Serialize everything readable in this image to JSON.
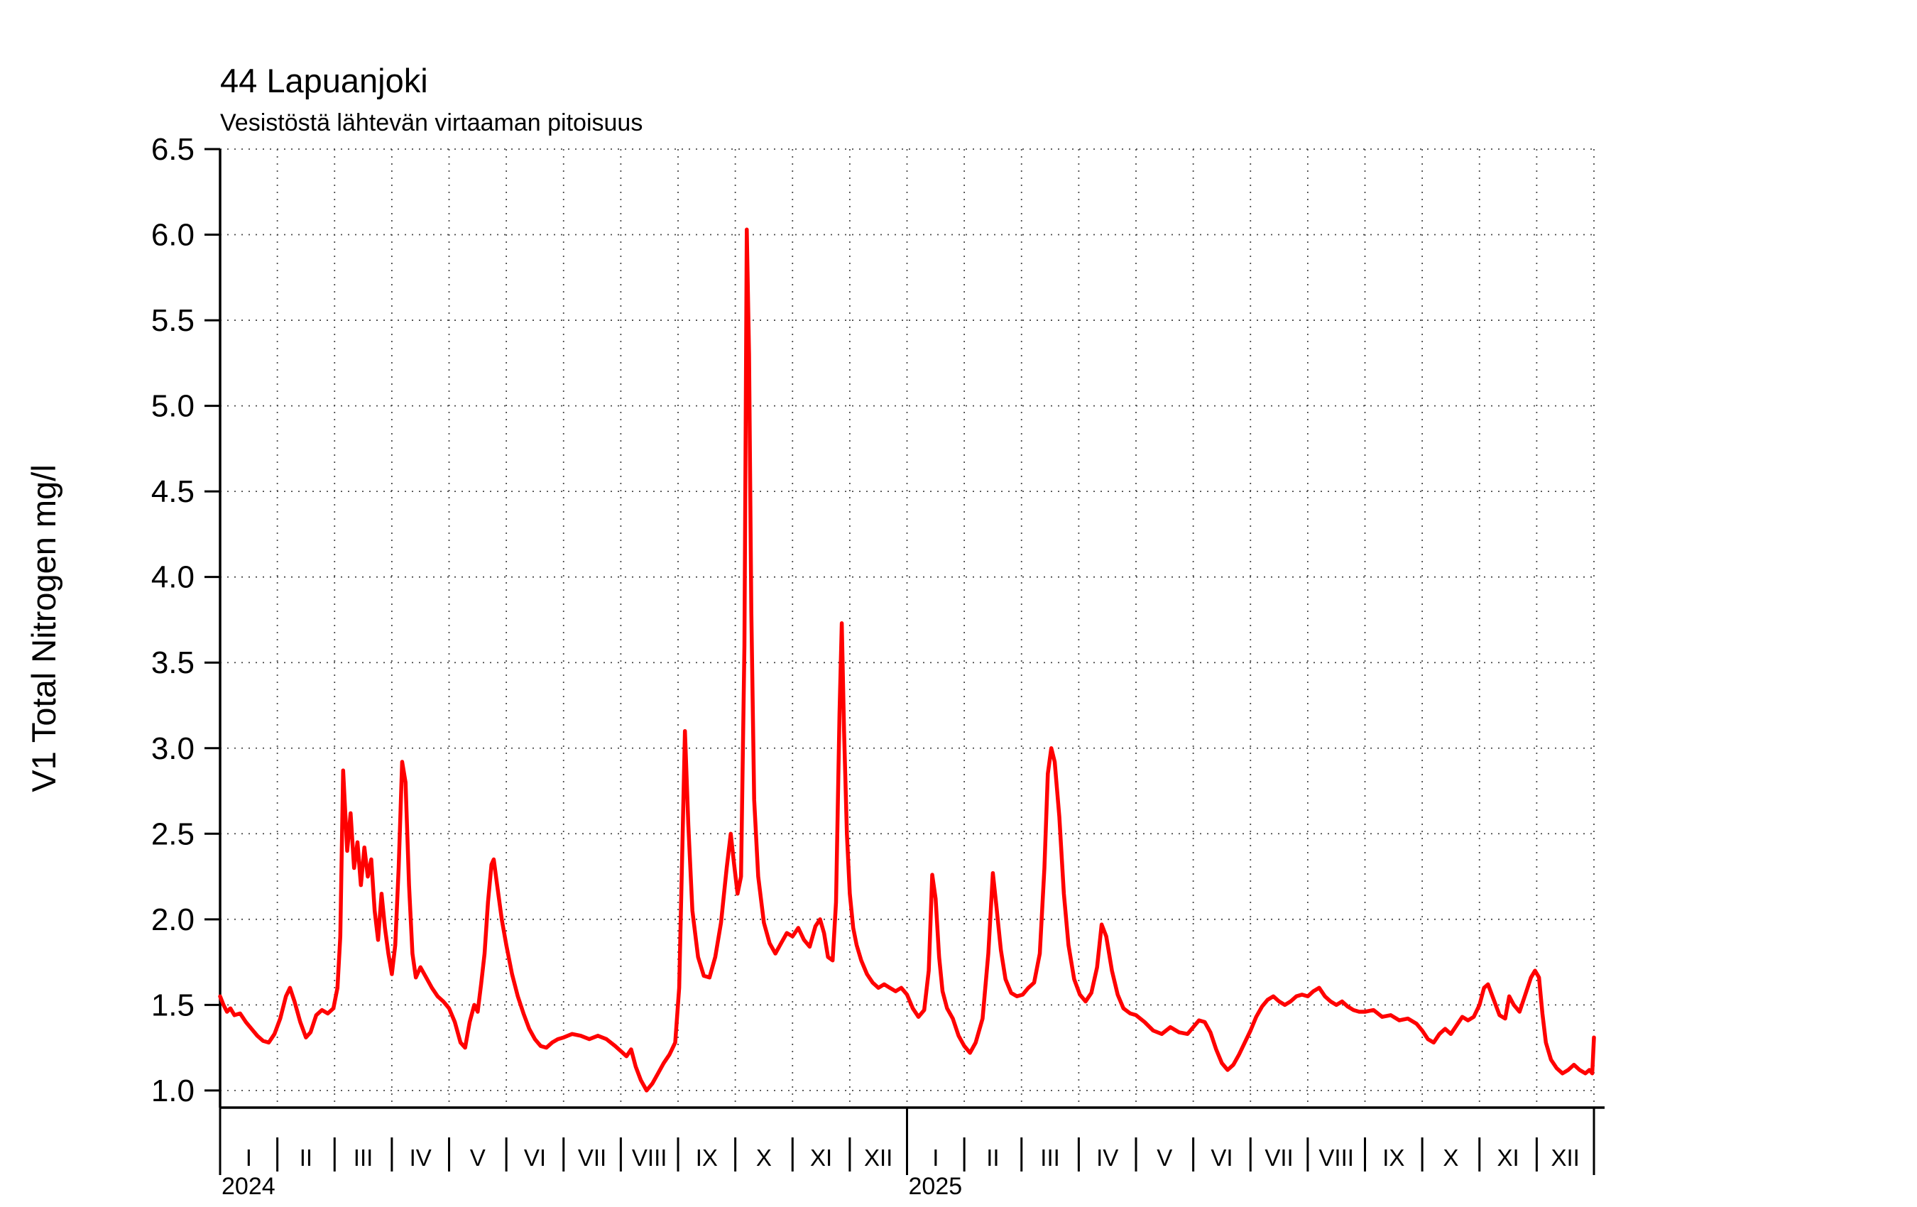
{
  "title": "44 Lapuanjoki",
  "subtitle": "Vesistöstä lähtevän virtaaman pitoisuus",
  "chart_data": {
    "type": "line",
    "title": "44 Lapuanjoki",
    "subtitle": "Vesistöstä lähtevän virtaaman pitoisuus",
    "ylabel": "V1 Total Nitrogen mg/l",
    "xlabel": "",
    "grid": "dotted",
    "legend": "none",
    "line_color": "#ff0000",
    "ylim": [
      0.9,
      6.5
    ],
    "yticks": [
      1.0,
      1.5,
      2.0,
      2.5,
      3.0,
      3.5,
      4.0,
      4.5,
      5.0,
      5.5,
      6.0,
      6.5
    ],
    "xlim": [
      0,
      24
    ],
    "x_unit": "months since January 2024",
    "month_labels": [
      "I",
      "II",
      "III",
      "IV",
      "V",
      "VI",
      "VII",
      "VIII",
      "IX",
      "X",
      "XI",
      "XII"
    ],
    "year_labels": [
      {
        "label": "2024",
        "start_month": 0
      },
      {
        "label": "2025",
        "start_month": 12
      }
    ],
    "series": [
      {
        "name": "V1 Total Nitrogen mg/l",
        "points": [
          [
            0.0,
            1.55
          ],
          [
            0.06,
            1.5
          ],
          [
            0.12,
            1.46
          ],
          [
            0.18,
            1.48
          ],
          [
            0.25,
            1.44
          ],
          [
            0.35,
            1.45
          ],
          [
            0.45,
            1.4
          ],
          [
            0.55,
            1.36
          ],
          [
            0.65,
            1.32
          ],
          [
            0.75,
            1.29
          ],
          [
            0.85,
            1.28
          ],
          [
            0.95,
            1.33
          ],
          [
            1.05,
            1.42
          ],
          [
            1.15,
            1.55
          ],
          [
            1.22,
            1.6
          ],
          [
            1.3,
            1.52
          ],
          [
            1.4,
            1.4
          ],
          [
            1.5,
            1.31
          ],
          [
            1.58,
            1.34
          ],
          [
            1.68,
            1.44
          ],
          [
            1.78,
            1.47
          ],
          [
            1.88,
            1.45
          ],
          [
            1.98,
            1.48
          ],
          [
            2.05,
            1.6
          ],
          [
            2.1,
            1.9
          ],
          [
            2.15,
            2.87
          ],
          [
            2.22,
            2.4
          ],
          [
            2.28,
            2.62
          ],
          [
            2.34,
            2.3
          ],
          [
            2.4,
            2.45
          ],
          [
            2.46,
            2.2
          ],
          [
            2.52,
            2.42
          ],
          [
            2.58,
            2.25
          ],
          [
            2.64,
            2.35
          ],
          [
            2.7,
            2.05
          ],
          [
            2.76,
            1.88
          ],
          [
            2.82,
            2.15
          ],
          [
            2.88,
            1.95
          ],
          [
            2.94,
            1.8
          ],
          [
            3.0,
            1.68
          ],
          [
            3.06,
            1.85
          ],
          [
            3.12,
            2.3
          ],
          [
            3.18,
            2.92
          ],
          [
            3.24,
            2.8
          ],
          [
            3.3,
            2.2
          ],
          [
            3.36,
            1.8
          ],
          [
            3.42,
            1.66
          ],
          [
            3.5,
            1.72
          ],
          [
            3.6,
            1.66
          ],
          [
            3.7,
            1.6
          ],
          [
            3.8,
            1.55
          ],
          [
            3.9,
            1.52
          ],
          [
            4.0,
            1.48
          ],
          [
            4.1,
            1.4
          ],
          [
            4.2,
            1.28
          ],
          [
            4.28,
            1.25
          ],
          [
            4.36,
            1.4
          ],
          [
            4.44,
            1.5
          ],
          [
            4.5,
            1.46
          ],
          [
            4.56,
            1.62
          ],
          [
            4.62,
            1.8
          ],
          [
            4.68,
            2.1
          ],
          [
            4.74,
            2.32
          ],
          [
            4.78,
            2.35
          ],
          [
            4.84,
            2.2
          ],
          [
            4.92,
            2.0
          ],
          [
            5.0,
            1.85
          ],
          [
            5.1,
            1.68
          ],
          [
            5.2,
            1.55
          ],
          [
            5.3,
            1.45
          ],
          [
            5.4,
            1.36
          ],
          [
            5.5,
            1.3
          ],
          [
            5.6,
            1.26
          ],
          [
            5.7,
            1.25
          ],
          [
            5.8,
            1.28
          ],
          [
            5.9,
            1.3
          ],
          [
            6.0,
            1.31
          ],
          [
            6.15,
            1.33
          ],
          [
            6.3,
            1.32
          ],
          [
            6.45,
            1.3
          ],
          [
            6.6,
            1.32
          ],
          [
            6.75,
            1.3
          ],
          [
            6.9,
            1.26
          ],
          [
            7.0,
            1.23
          ],
          [
            7.1,
            1.2
          ],
          [
            7.18,
            1.24
          ],
          [
            7.26,
            1.14
          ],
          [
            7.35,
            1.06
          ],
          [
            7.45,
            1.0
          ],
          [
            7.55,
            1.04
          ],
          [
            7.65,
            1.1
          ],
          [
            7.75,
            1.16
          ],
          [
            7.85,
            1.21
          ],
          [
            7.95,
            1.28
          ],
          [
            8.02,
            1.6
          ],
          [
            8.08,
            2.5
          ],
          [
            8.12,
            3.1
          ],
          [
            8.18,
            2.55
          ],
          [
            8.25,
            2.05
          ],
          [
            8.35,
            1.78
          ],
          [
            8.45,
            1.67
          ],
          [
            8.55,
            1.66
          ],
          [
            8.65,
            1.78
          ],
          [
            8.75,
            1.98
          ],
          [
            8.85,
            2.3
          ],
          [
            8.92,
            2.5
          ],
          [
            8.98,
            2.32
          ],
          [
            9.04,
            2.15
          ],
          [
            9.1,
            2.25
          ],
          [
            9.16,
            3.6
          ],
          [
            9.2,
            6.03
          ],
          [
            9.24,
            5.3
          ],
          [
            9.28,
            3.8
          ],
          [
            9.33,
            2.7
          ],
          [
            9.4,
            2.25
          ],
          [
            9.5,
            1.98
          ],
          [
            9.6,
            1.86
          ],
          [
            9.7,
            1.8
          ],
          [
            9.8,
            1.86
          ],
          [
            9.9,
            1.92
          ],
          [
            10.0,
            1.9
          ],
          [
            10.1,
            1.95
          ],
          [
            10.2,
            1.88
          ],
          [
            10.3,
            1.84
          ],
          [
            10.4,
            1.96
          ],
          [
            10.48,
            2.0
          ],
          [
            10.55,
            1.92
          ],
          [
            10.62,
            1.78
          ],
          [
            10.7,
            1.76
          ],
          [
            10.76,
            2.1
          ],
          [
            10.82,
            3.2
          ],
          [
            10.86,
            3.73
          ],
          [
            10.9,
            3.1
          ],
          [
            10.95,
            2.5
          ],
          [
            11.0,
            2.15
          ],
          [
            11.06,
            1.95
          ],
          [
            11.12,
            1.85
          ],
          [
            11.2,
            1.76
          ],
          [
            11.3,
            1.68
          ],
          [
            11.4,
            1.63
          ],
          [
            11.5,
            1.6
          ],
          [
            11.6,
            1.62
          ],
          [
            11.7,
            1.6
          ],
          [
            11.8,
            1.58
          ],
          [
            11.9,
            1.6
          ],
          [
            12.0,
            1.56
          ],
          [
            12.1,
            1.48
          ],
          [
            12.2,
            1.43
          ],
          [
            12.3,
            1.47
          ],
          [
            12.38,
            1.7
          ],
          [
            12.44,
            2.26
          ],
          [
            12.5,
            2.12
          ],
          [
            12.56,
            1.78
          ],
          [
            12.62,
            1.58
          ],
          [
            12.7,
            1.48
          ],
          [
            12.8,
            1.42
          ],
          [
            12.9,
            1.32
          ],
          [
            13.0,
            1.26
          ],
          [
            13.1,
            1.22
          ],
          [
            13.2,
            1.28
          ],
          [
            13.32,
            1.42
          ],
          [
            13.42,
            1.8
          ],
          [
            13.5,
            2.27
          ],
          [
            13.56,
            2.08
          ],
          [
            13.64,
            1.82
          ],
          [
            13.72,
            1.65
          ],
          [
            13.82,
            1.57
          ],
          [
            13.92,
            1.55
          ],
          [
            14.02,
            1.56
          ],
          [
            14.12,
            1.6
          ],
          [
            14.22,
            1.63
          ],
          [
            14.32,
            1.8
          ],
          [
            14.4,
            2.3
          ],
          [
            14.46,
            2.85
          ],
          [
            14.52,
            3.0
          ],
          [
            14.58,
            2.92
          ],
          [
            14.66,
            2.6
          ],
          [
            14.74,
            2.15
          ],
          [
            14.82,
            1.85
          ],
          [
            14.92,
            1.65
          ],
          [
            15.02,
            1.56
          ],
          [
            15.12,
            1.52
          ],
          [
            15.22,
            1.57
          ],
          [
            15.32,
            1.72
          ],
          [
            15.4,
            1.97
          ],
          [
            15.48,
            1.9
          ],
          [
            15.58,
            1.7
          ],
          [
            15.68,
            1.56
          ],
          [
            15.78,
            1.48
          ],
          [
            15.9,
            1.45
          ],
          [
            16.0,
            1.44
          ],
          [
            16.15,
            1.4
          ],
          [
            16.3,
            1.35
          ],
          [
            16.45,
            1.33
          ],
          [
            16.6,
            1.37
          ],
          [
            16.75,
            1.34
          ],
          [
            16.9,
            1.33
          ],
          [
            17.0,
            1.37
          ],
          [
            17.1,
            1.41
          ],
          [
            17.2,
            1.4
          ],
          [
            17.3,
            1.34
          ],
          [
            17.4,
            1.24
          ],
          [
            17.5,
            1.16
          ],
          [
            17.6,
            1.12
          ],
          [
            17.7,
            1.15
          ],
          [
            17.8,
            1.21
          ],
          [
            17.9,
            1.28
          ],
          [
            18.0,
            1.35
          ],
          [
            18.1,
            1.43
          ],
          [
            18.2,
            1.49
          ],
          [
            18.3,
            1.53
          ],
          [
            18.4,
            1.55
          ],
          [
            18.5,
            1.52
          ],
          [
            18.6,
            1.5
          ],
          [
            18.7,
            1.52
          ],
          [
            18.8,
            1.55
          ],
          [
            18.9,
            1.56
          ],
          [
            19.0,
            1.55
          ],
          [
            19.1,
            1.58
          ],
          [
            19.2,
            1.6
          ],
          [
            19.3,
            1.55
          ],
          [
            19.4,
            1.52
          ],
          [
            19.5,
            1.5
          ],
          [
            19.6,
            1.52
          ],
          [
            19.7,
            1.49
          ],
          [
            19.8,
            1.47
          ],
          [
            19.9,
            1.46
          ],
          [
            20.0,
            1.46
          ],
          [
            20.15,
            1.47
          ],
          [
            20.3,
            1.43
          ],
          [
            20.45,
            1.44
          ],
          [
            20.6,
            1.41
          ],
          [
            20.75,
            1.42
          ],
          [
            20.9,
            1.39
          ],
          [
            21.0,
            1.35
          ],
          [
            21.1,
            1.3
          ],
          [
            21.2,
            1.28
          ],
          [
            21.3,
            1.33
          ],
          [
            21.4,
            1.36
          ],
          [
            21.5,
            1.33
          ],
          [
            21.6,
            1.38
          ],
          [
            21.7,
            1.43
          ],
          [
            21.8,
            1.41
          ],
          [
            21.9,
            1.43
          ],
          [
            22.0,
            1.5
          ],
          [
            22.08,
            1.6
          ],
          [
            22.15,
            1.62
          ],
          [
            22.25,
            1.53
          ],
          [
            22.35,
            1.44
          ],
          [
            22.45,
            1.42
          ],
          [
            22.52,
            1.55
          ],
          [
            22.6,
            1.5
          ],
          [
            22.7,
            1.46
          ],
          [
            22.8,
            1.56
          ],
          [
            22.9,
            1.66
          ],
          [
            22.97,
            1.7
          ],
          [
            23.04,
            1.66
          ],
          [
            23.1,
            1.45
          ],
          [
            23.16,
            1.28
          ],
          [
            23.25,
            1.18
          ],
          [
            23.35,
            1.13
          ],
          [
            23.45,
            1.1
          ],
          [
            23.55,
            1.12
          ],
          [
            23.65,
            1.15
          ],
          [
            23.75,
            1.12
          ],
          [
            23.85,
            1.1
          ],
          [
            23.92,
            1.12
          ],
          [
            23.97,
            1.1
          ],
          [
            24.0,
            1.31
          ]
        ]
      }
    ]
  }
}
